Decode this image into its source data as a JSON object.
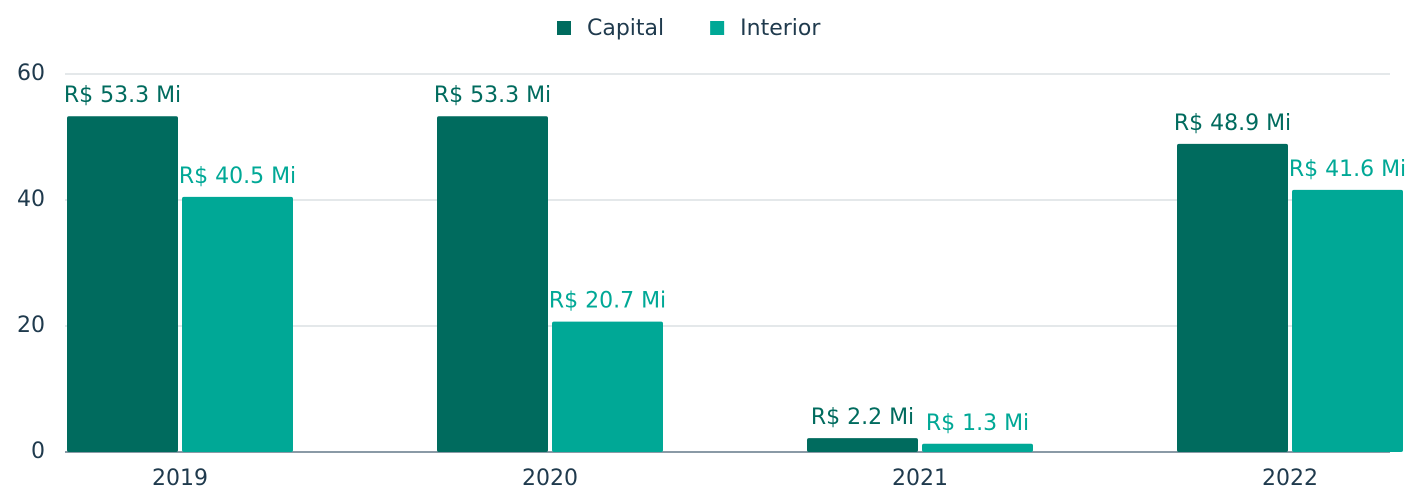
{
  "chart_data": {
    "type": "bar",
    "categories": [
      "2019",
      "2020",
      "2021",
      "2022"
    ],
    "series": [
      {
        "name": "Capital",
        "color": "#006b5e",
        "values": [
          53.3,
          53.3,
          2.2,
          48.9
        ],
        "value_labels": [
          "R$ 53.3 Mi",
          "R$ 53.3 Mi",
          "R$ 2.2 Mi",
          "R$ 48.9 Mi"
        ]
      },
      {
        "name": "Interior",
        "color": "#00a896",
        "values": [
          40.5,
          20.7,
          1.3,
          41.6
        ],
        "value_labels": [
          "R$ 40.5 Mi",
          "R$ 20.7 Mi",
          "R$ 1.3 Mi",
          "R$ 41.6 Mi"
        ]
      }
    ],
    "ylim": [
      0,
      60
    ],
    "yticks": [
      0,
      20,
      40,
      60
    ],
    "grid": true,
    "legend": "top"
  }
}
